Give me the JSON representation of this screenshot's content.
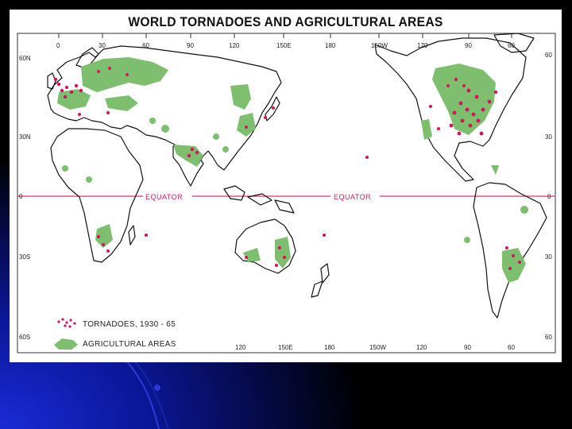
{
  "map": {
    "title": "WORLD TORNADOES AND AGRICULTURAL AREAS",
    "equator_label": "EQUATOR",
    "top_longitudes": [
      "0",
      "30",
      "60",
      "90",
      "120",
      "150E",
      "180",
      "150W",
      "120",
      "90",
      "60"
    ],
    "bottom_longitudes": [
      "120",
      "150E",
      "180",
      "150W",
      "120",
      "90",
      "60"
    ],
    "left_latitudes": [
      "60N",
      "30N",
      "0",
      "30S",
      "60S"
    ],
    "right_latitudes": [
      "60",
      "30",
      "0",
      "30",
      "60"
    ],
    "legend": {
      "tornadoes": "TORNADOES, 1930 - 65",
      "agriculture": "AGRICULTURAL AREAS"
    },
    "colors": {
      "tornado": "#d4145a",
      "agriculture": "#7dbf6e",
      "equator": "#e0307a",
      "coastline": "#111111"
    }
  }
}
